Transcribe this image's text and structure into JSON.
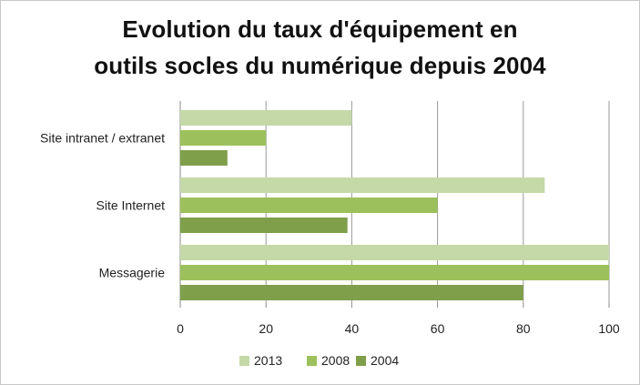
{
  "chart_data": {
    "type": "bar",
    "orientation": "horizontal",
    "title": [
      "Evolution du taux d'équipement en",
      "outils socles du numérique depuis 2004"
    ],
    "categories": [
      "Site intranet / extranet",
      "Site Internet",
      "Messagerie"
    ],
    "series": [
      {
        "name": "2013",
        "color": "#c4d9a7",
        "values": [
          40,
          85,
          100
        ]
      },
      {
        "name": "2008",
        "color": "#9cc15c",
        "values": [
          20,
          60,
          100
        ]
      },
      {
        "name": "2004",
        "color": "#7f9f4a",
        "values": [
          11,
          39,
          80
        ]
      }
    ],
    "xlim": [
      0,
      100
    ],
    "xticks": [
      "0",
      "20",
      "40",
      "60",
      "80",
      "100"
    ],
    "xlabel": "",
    "ylabel": "",
    "grid": "vertical",
    "legend": "bottom"
  }
}
